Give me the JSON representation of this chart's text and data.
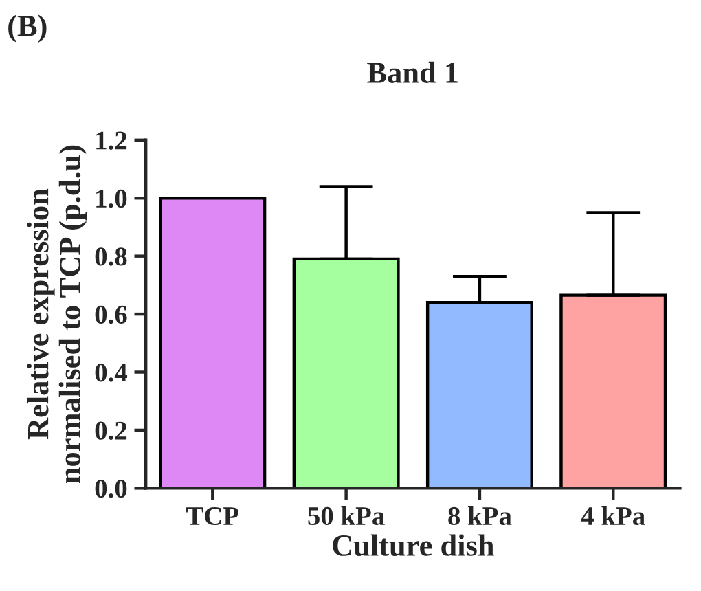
{
  "chart_data": {
    "type": "bar",
    "title": "Band 1",
    "xlabel": "Culture dish",
    "ylabel": "Relative expression\nnormalised to TCP (p.d.u)",
    "annotations": [
      "(B)"
    ],
    "categories": [
      "TCP",
      "50 kPa",
      "8 kPa",
      "4 kPa"
    ],
    "values": [
      1.0,
      0.79,
      0.64,
      0.665
    ],
    "colors": [
      "#dd88f5",
      "#a6ff9e",
      "#92bbff",
      "#ffa2a2"
    ],
    "errors": [
      null,
      [
        0.79,
        1.04
      ],
      [
        0.64,
        0.73
      ],
      [
        0.665,
        0.95
      ]
    ],
    "ylim": [
      0,
      1.2
    ],
    "yticks": [
      {
        "value": 0,
        "label": "0.0"
      },
      0.2,
      0.4,
      0.6,
      0.8,
      {
        "value": 1,
        "label": "1.0"
      },
      1.2
    ],
    "grid": false,
    "legend": false
  }
}
